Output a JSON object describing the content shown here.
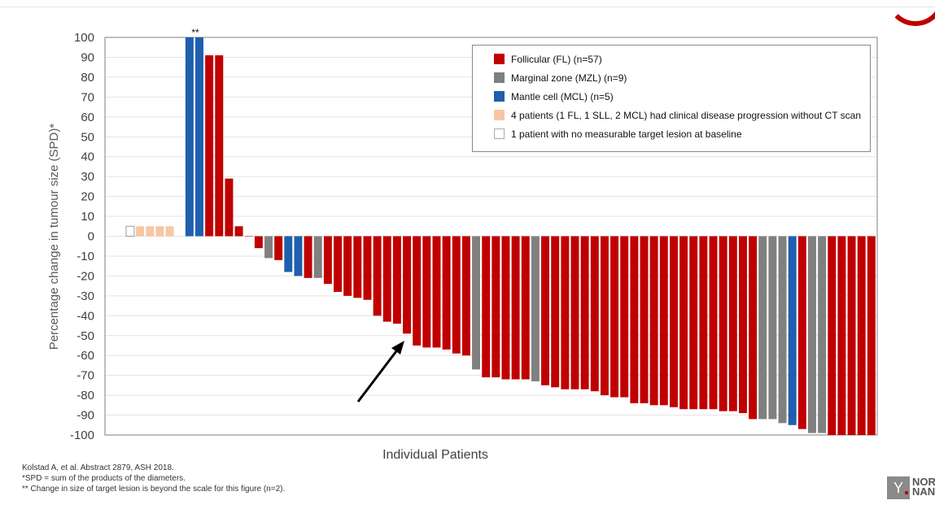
{
  "chart_data": {
    "type": "bar",
    "ylabel": "Percentage change in tumour size (SPD)*",
    "xlabel": "Individual Patients",
    "ylim": [
      -100,
      100
    ],
    "yticks": [
      100,
      90,
      80,
      70,
      60,
      50,
      40,
      30,
      20,
      10,
      0,
      -10,
      -20,
      -30,
      -40,
      -50,
      -60,
      -70,
      -80,
      -90,
      -100
    ],
    "grid": true,
    "legend_position": "top-right",
    "annotation": "**",
    "colors": {
      "FL": "#c00000",
      "MZL": "#808080",
      "MCL": "#1f5fae",
      "CLIN": "#f8c7a2",
      "NM": "#ffffff"
    },
    "legend": [
      {
        "key": "FL",
        "label": "Follicular (FL) (n=57)"
      },
      {
        "key": "MZL",
        "label": "Marginal zone (MZL) (n=9)"
      },
      {
        "key": "MCL",
        "label": "Mantle cell (MCL) (n=5)"
      },
      {
        "key": "CLIN",
        "label": "4 patients (1 FL, 1 SLL, 2 MCL) had clinical disease progression without CT scan"
      },
      {
        "key": "NM",
        "label": "1 patient with no measurable target lesion at baseline"
      }
    ],
    "bars": [
      {
        "type": "NM",
        "value": 5
      },
      {
        "type": "CLIN",
        "value": 5
      },
      {
        "type": "CLIN",
        "value": 5
      },
      {
        "type": "CLIN",
        "value": 5
      },
      {
        "type": "CLIN",
        "value": 5
      },
      {
        "type": "gap",
        "value": 0
      },
      {
        "type": "MCL",
        "value": 100
      },
      {
        "type": "MCL",
        "value": 100
      },
      {
        "type": "FL",
        "value": 91
      },
      {
        "type": "FL",
        "value": 91
      },
      {
        "type": "FL",
        "value": 29
      },
      {
        "type": "FL",
        "value": 5
      },
      {
        "type": "FL",
        "value": 0
      },
      {
        "type": "FL",
        "value": -6
      },
      {
        "type": "MZL",
        "value": -11
      },
      {
        "type": "FL",
        "value": -12
      },
      {
        "type": "MCL",
        "value": -18
      },
      {
        "type": "MCL",
        "value": -20
      },
      {
        "type": "FL",
        "value": -21
      },
      {
        "type": "MZL",
        "value": -21
      },
      {
        "type": "FL",
        "value": -24
      },
      {
        "type": "FL",
        "value": -28
      },
      {
        "type": "FL",
        "value": -30
      },
      {
        "type": "FL",
        "value": -31
      },
      {
        "type": "FL",
        "value": -32
      },
      {
        "type": "FL",
        "value": -40
      },
      {
        "type": "FL",
        "value": -43
      },
      {
        "type": "FL",
        "value": -44
      },
      {
        "type": "FL",
        "value": -49
      },
      {
        "type": "FL",
        "value": -55
      },
      {
        "type": "FL",
        "value": -56
      },
      {
        "type": "FL",
        "value": -56
      },
      {
        "type": "FL",
        "value": -57
      },
      {
        "type": "FL",
        "value": -59
      },
      {
        "type": "FL",
        "value": -60
      },
      {
        "type": "MZL",
        "value": -67
      },
      {
        "type": "FL",
        "value": -71
      },
      {
        "type": "FL",
        "value": -71
      },
      {
        "type": "FL",
        "value": -72
      },
      {
        "type": "FL",
        "value": -72
      },
      {
        "type": "FL",
        "value": -72
      },
      {
        "type": "MZL",
        "value": -73
      },
      {
        "type": "FL",
        "value": -75
      },
      {
        "type": "FL",
        "value": -76
      },
      {
        "type": "FL",
        "value": -77
      },
      {
        "type": "FL",
        "value": -77
      },
      {
        "type": "FL",
        "value": -77
      },
      {
        "type": "FL",
        "value": -78
      },
      {
        "type": "FL",
        "value": -80
      },
      {
        "type": "FL",
        "value": -81
      },
      {
        "type": "FL",
        "value": -81
      },
      {
        "type": "FL",
        "value": -84
      },
      {
        "type": "FL",
        "value": -84
      },
      {
        "type": "FL",
        "value": -85
      },
      {
        "type": "FL",
        "value": -85
      },
      {
        "type": "FL",
        "value": -86
      },
      {
        "type": "FL",
        "value": -87
      },
      {
        "type": "FL",
        "value": -87
      },
      {
        "type": "FL",
        "value": -87
      },
      {
        "type": "FL",
        "value": -87
      },
      {
        "type": "FL",
        "value": -88
      },
      {
        "type": "FL",
        "value": -88
      },
      {
        "type": "FL",
        "value": -89
      },
      {
        "type": "FL",
        "value": -92
      },
      {
        "type": "MZL",
        "value": -92
      },
      {
        "type": "MZL",
        "value": -92
      },
      {
        "type": "MZL",
        "value": -94
      },
      {
        "type": "MCL",
        "value": -95
      },
      {
        "type": "FL",
        "value": -97
      },
      {
        "type": "MZL",
        "value": -99
      },
      {
        "type": "MZL",
        "value": -99
      },
      {
        "type": "FL",
        "value": -100
      },
      {
        "type": "FL",
        "value": -100
      },
      {
        "type": "FL",
        "value": -100
      },
      {
        "type": "FL",
        "value": -100
      },
      {
        "type": "FL",
        "value": -100
      }
    ]
  },
  "footnotes": {
    "citation": "Kolstad A, et al. Abstract 2879, ASH 2018.",
    "spd": "*SPD = sum of the products of the diameters.",
    "beyond_scale": "** Change in size of target lesion is beyond the scale for this figure (n=2)."
  },
  "logo": {
    "line1": "NOR",
    "line2": "NAN"
  }
}
